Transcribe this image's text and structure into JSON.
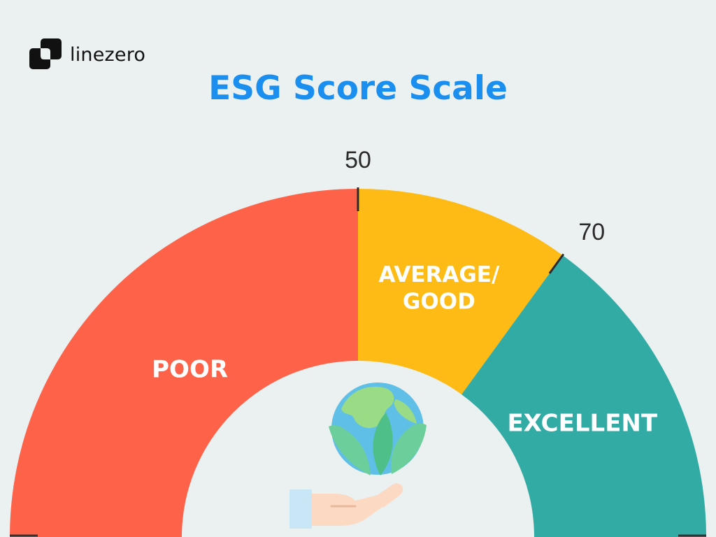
{
  "brand": {
    "name": "linezero",
    "logo_icon": "linezero-logo-icon"
  },
  "title": "ESG Score Scale",
  "scale": {
    "min": 0,
    "max": 100,
    "thresholds": [
      {
        "value": 50,
        "label": "50"
      },
      {
        "value": 70,
        "label": "70"
      }
    ],
    "segments": [
      {
        "name": "poor",
        "from": 0,
        "to": 50,
        "label_lines": [
          "POOR"
        ],
        "color": "#fe634a"
      },
      {
        "name": "average-good",
        "from": 50,
        "to": 70,
        "label_lines": [
          "AVERAGE/",
          "GOOD"
        ],
        "color": "#febb16"
      },
      {
        "name": "excellent",
        "from": 70,
        "to": 100,
        "label_lines": [
          "EXCELLENT"
        ],
        "color": "#33aba5"
      }
    ]
  },
  "center_icon": "earth-in-hand-icon",
  "colors": {
    "background": "#ebf0f0",
    "title": "#1a8ff0",
    "tick": "#2b2b2b"
  }
}
